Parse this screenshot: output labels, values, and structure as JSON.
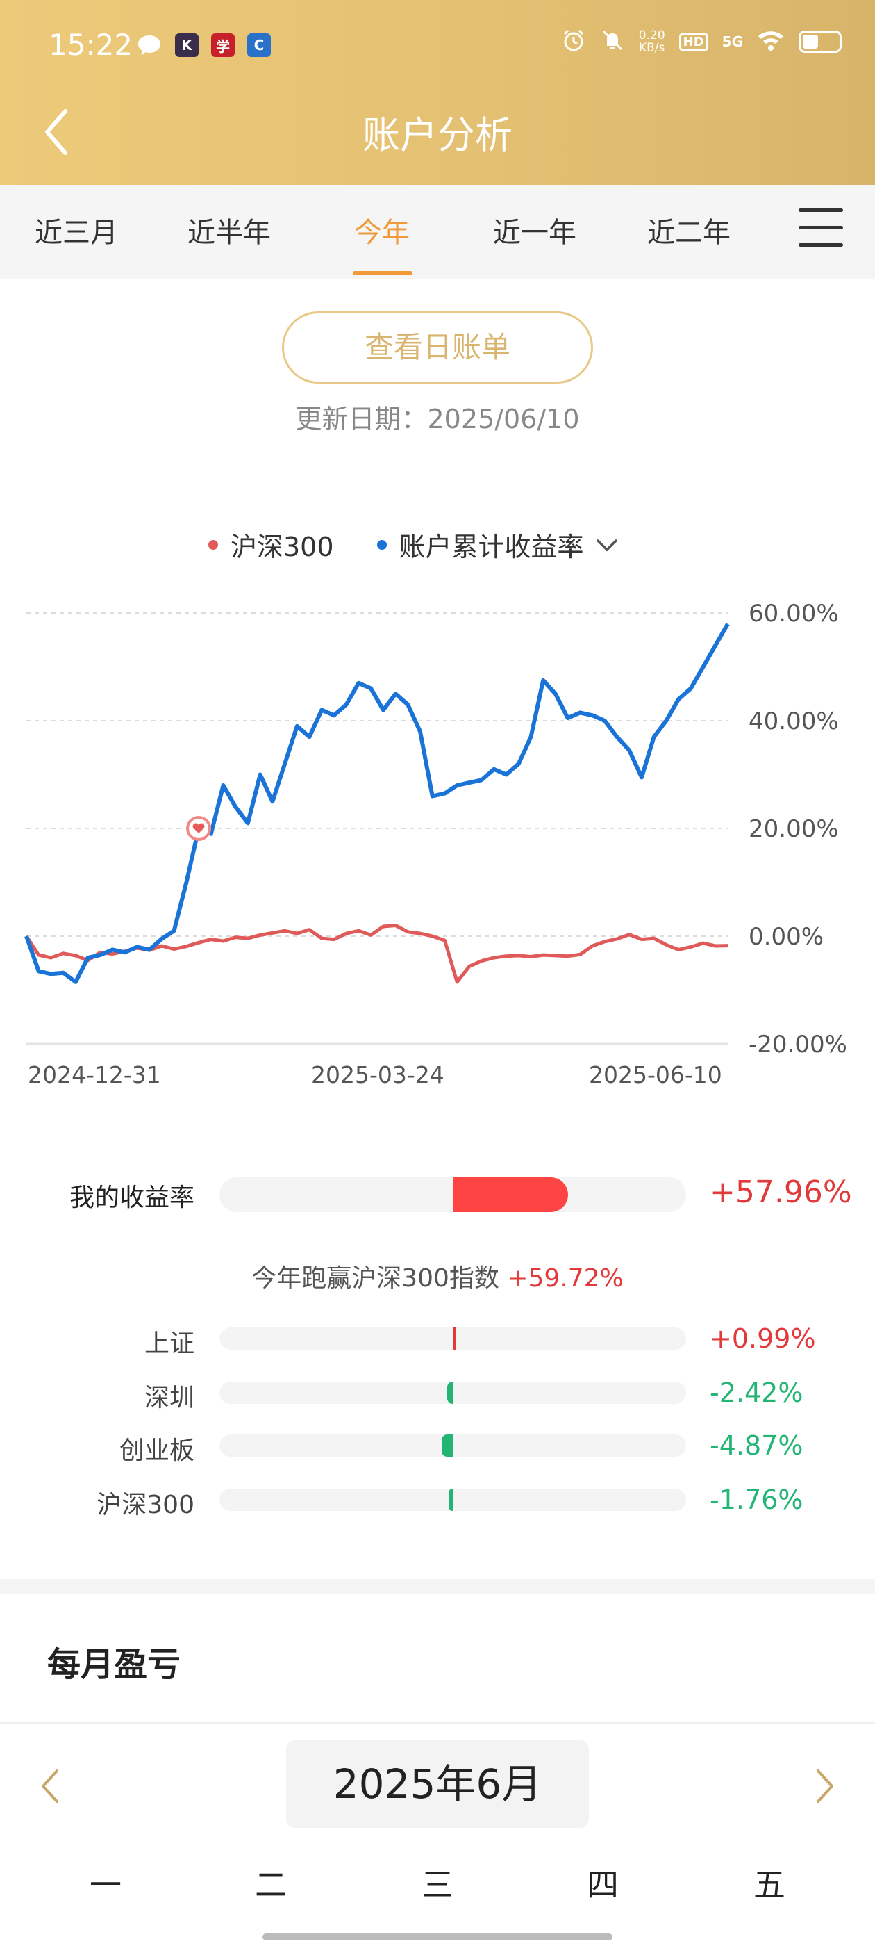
{
  "status_bar": {
    "time": "15:22",
    "net_speed_value": "0.20",
    "net_speed_unit": "KB/s",
    "hd": "HD",
    "network": "5G",
    "icons": [
      "chat-bubble-icon",
      "k-app-icon",
      "study-app-icon",
      "c-app-icon",
      "alarm-icon",
      "mute-bell-icon",
      "wifi-icon",
      "battery-icon"
    ]
  },
  "header": {
    "title": "账户分析",
    "back_icon": "chevron-left-icon"
  },
  "tabs": [
    {
      "label": "近三月",
      "active": false
    },
    {
      "label": "近半年",
      "active": false
    },
    {
      "label": "今年",
      "active": true
    },
    {
      "label": "近一年",
      "active": false
    },
    {
      "label": "近二年",
      "active": false
    }
  ],
  "menu_icon": "hamburger-menu-icon",
  "bill_button": "查看日账单",
  "update_label": "更新日期：2025/06/10",
  "legend": {
    "series_a": "沪深300",
    "series_b": "账户累计收益率",
    "dropdown_icon": "chevron-down-icon"
  },
  "chart_data": {
    "type": "line",
    "ylim": [
      -20,
      60
    ],
    "y_ticks": [
      "60.00%",
      "40.00%",
      "20.00%",
      "0.00%",
      "-20.00%"
    ],
    "x_tick_labels": [
      "2024-12-31",
      "2025-03-24",
      "2025-06-10"
    ],
    "grid": "dashed-horizontal",
    "series": [
      {
        "name": "沪深300",
        "color": "#e05a5a",
        "values": [
          0.0,
          -3.5,
          -4.0,
          -3.2,
          -3.6,
          -4.5,
          -3.0,
          -3.3,
          -2.8,
          -2.2,
          -2.6,
          -1.8,
          -2.4,
          -1.9,
          -1.2,
          -0.6,
          -0.9,
          -0.2,
          -0.4,
          0.2,
          0.6,
          1.0,
          0.5,
          1.2,
          -0.4,
          -0.6,
          0.5,
          1.0,
          0.2,
          1.8,
          2.0,
          0.8,
          0.5,
          0.0,
          -0.8,
          -8.5,
          -5.6,
          -4.6,
          -4.0,
          -3.7,
          -3.6,
          -3.8,
          -3.5,
          -3.6,
          -3.7,
          -3.4,
          -1.8,
          -1.0,
          -0.5,
          0.3,
          -0.6,
          -0.4,
          -1.6,
          -2.5,
          -2.0,
          -1.3,
          -1.8,
          -1.76
        ]
      },
      {
        "name": "账户累计收益率",
        "color": "#1a73d6",
        "values": [
          0.0,
          -6.5,
          -7.0,
          -6.8,
          -8.5,
          -4.0,
          -3.5,
          -2.5,
          -3.0,
          -2.0,
          -2.5,
          -0.5,
          1.0,
          10.0,
          20.0,
          19.0,
          28.0,
          24.0,
          21.0,
          30.0,
          25.0,
          32.0,
          39.0,
          37.0,
          42.0,
          41.0,
          43.0,
          47.0,
          46.0,
          42.0,
          45.0,
          43.0,
          38.0,
          26.0,
          26.5,
          28.0,
          28.5,
          29.0,
          31.0,
          30.0,
          32.0,
          37.0,
          47.5,
          45.0,
          40.5,
          41.5,
          41.0,
          40.0,
          37.0,
          34.5,
          29.5,
          37.0,
          40.0,
          44.0,
          46.0,
          50.0,
          54.0,
          57.96
        ]
      }
    ],
    "marker": {
      "series": "账户累计收益率",
      "index": 14,
      "icon": "heart-marker-icon"
    }
  },
  "my_return": {
    "label": "我的收益率",
    "value": "+57.96%",
    "percent": 57.96,
    "color": "#ff4444"
  },
  "beat_text": {
    "prefix": "今年跑赢沪深300指数",
    "value": "+59.72%"
  },
  "indices": [
    {
      "label": "上证",
      "value": "+0.99%",
      "percent": 0.99,
      "color": "#e23a3a"
    },
    {
      "label": "深圳",
      "value": "-2.42%",
      "percent": -2.42,
      "color": "#22b573"
    },
    {
      "label": "创业板",
      "value": "-4.87%",
      "percent": -4.87,
      "color": "#22b573"
    },
    {
      "label": "沪深300",
      "value": "-1.76%",
      "percent": -1.76,
      "color": "#22b573"
    }
  ],
  "monthly": {
    "title": "每月盈亏",
    "month_label": "2025年6月",
    "prev_icon": "chevron-left-icon",
    "next_icon": "chevron-right-icon"
  },
  "weekdays": [
    "一",
    "二",
    "三",
    "四",
    "五"
  ]
}
